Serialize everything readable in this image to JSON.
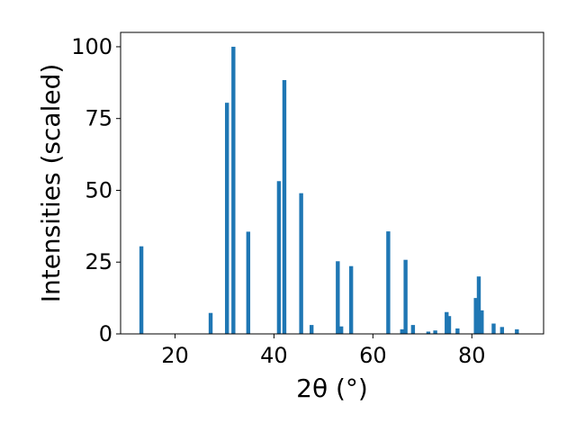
{
  "chart_data": {
    "type": "bar",
    "title": "",
    "xlabel": "2θ (°)",
    "ylabel": "Intensities (scaled)",
    "xlim": [
      9,
      94.5
    ],
    "ylim": [
      0,
      105
    ],
    "xticks": [
      20,
      40,
      60,
      80
    ],
    "yticks": [
      0,
      25,
      50,
      75,
      100
    ],
    "bar_color": "#1f77b4",
    "bar_width": 0.8,
    "grid": false,
    "legend": "none",
    "x": [
      13.2,
      27.2,
      30.5,
      31.8,
      34.8,
      41.0,
      42.1,
      45.5,
      47.6,
      52.9,
      53.6,
      55.6,
      63.1,
      65.9,
      66.6,
      68.1,
      71.2,
      72.6,
      74.9,
      75.4,
      77.1,
      80.8,
      81.4,
      82.0,
      84.4,
      86.1,
      89.1
    ],
    "values": [
      30.5,
      7.3,
      80.5,
      100.0,
      35.6,
      53.2,
      88.4,
      49.0,
      3.1,
      25.3,
      2.6,
      23.6,
      35.7,
      1.6,
      25.8,
      3.1,
      0.8,
      1.2,
      7.6,
      6.2,
      1.9,
      12.5,
      20.0,
      8.2,
      3.6,
      2.4,
      1.6
    ]
  }
}
